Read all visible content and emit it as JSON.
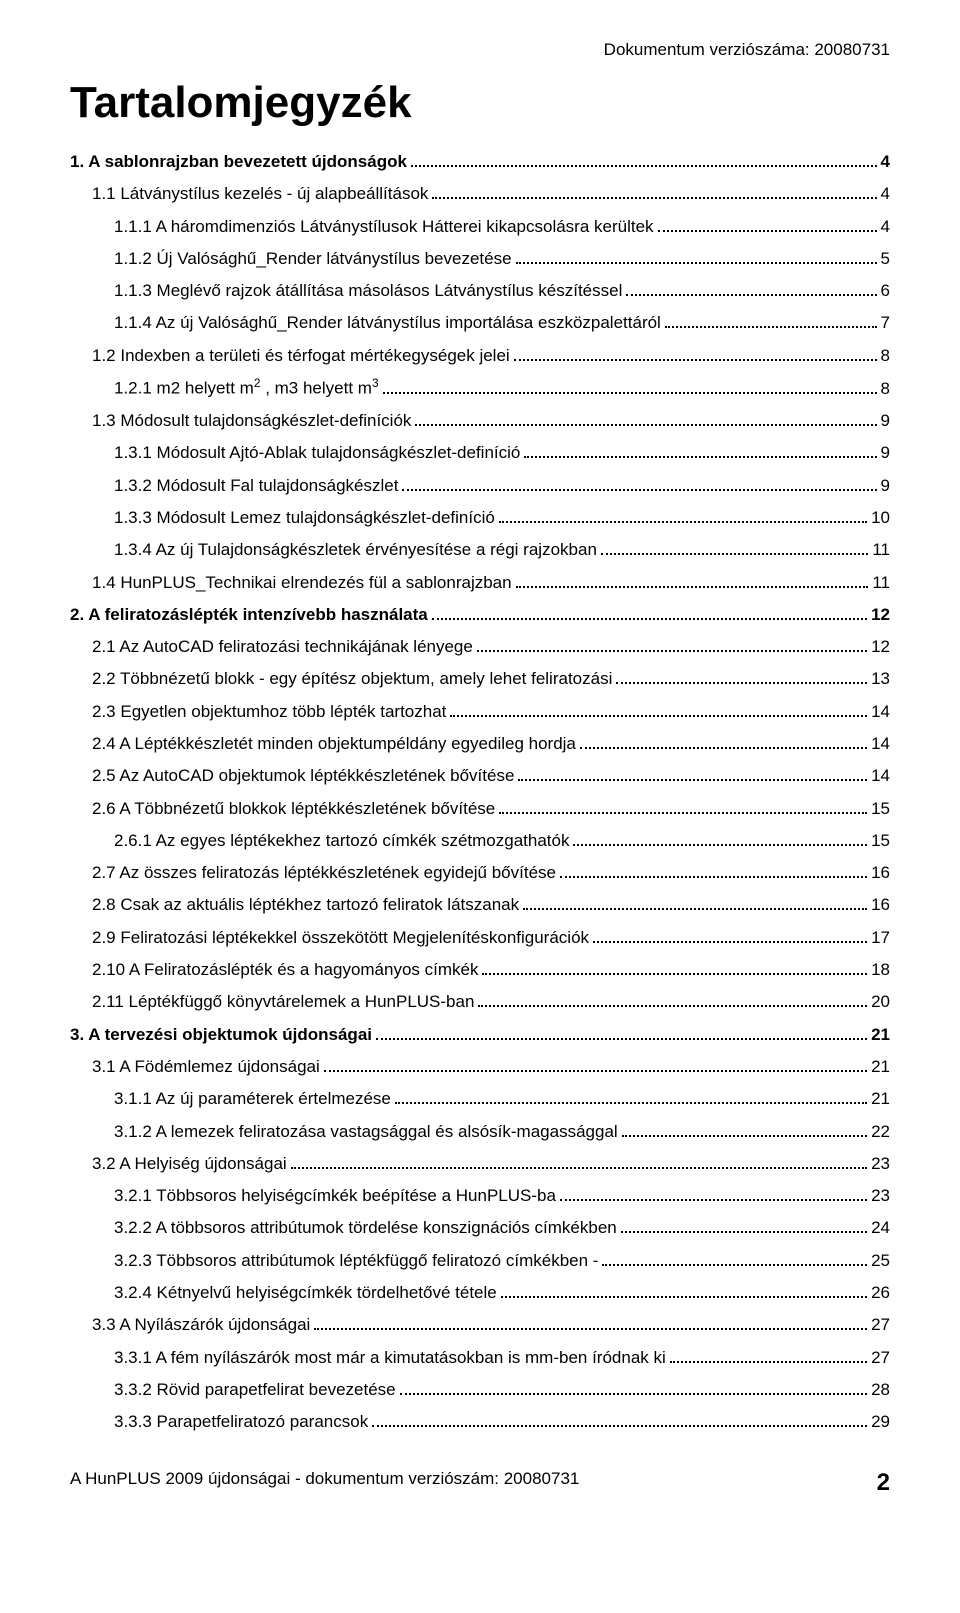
{
  "header": {
    "version_text": "Dokumentum verziószáma: 20080731"
  },
  "title": "Tartalomjegyzék",
  "toc": [
    {
      "level": 0,
      "text": "1. A sablonrajzban bevezetett újdonságok",
      "page": "4"
    },
    {
      "level": 1,
      "text": "1.1 Látványstílus kezelés - új alapbeállítások",
      "page": "4"
    },
    {
      "level": 2,
      "text": "1.1.1 A háromdimenziós Látványstílusok Hátterei kikapcsolásra kerültek",
      "page": "4"
    },
    {
      "level": 2,
      "text": "1.1.2 Új Valósághű_Render látványstílus bevezetése",
      "page": "5"
    },
    {
      "level": 2,
      "text": "1.1.3 Meglévő rajzok átállítása másolásos Látványstílus készítéssel",
      "page": "6"
    },
    {
      "level": 2,
      "text": "1.1.4 Az új Valósághű_Render látványstílus importálása eszközpalettáról",
      "page": "7"
    },
    {
      "level": 1,
      "text": "1.2 Indexben a területi és térfogat mértékegységek jelei",
      "page": "8"
    },
    {
      "level": 2,
      "text": "1.2.1 m2 helyett m<sup>2</sup> , m3 helyett m<sup>3</sup>",
      "page": "8",
      "html": true
    },
    {
      "level": 1,
      "text": "1.3 Módosult tulajdonságkészlet-definíciók",
      "page": "9"
    },
    {
      "level": 2,
      "text": "1.3.1 Módosult Ajtó-Ablak tulajdonságkészlet-definíció",
      "page": "9"
    },
    {
      "level": 2,
      "text": "1.3.2 Módosult Fal tulajdonságkészlet",
      "page": "9"
    },
    {
      "level": 2,
      "text": "1.3.3 Módosult Lemez tulajdonságkészlet-definíció",
      "page": "10"
    },
    {
      "level": 2,
      "text": "1.3.4 Az új Tulajdonságkészletek érvényesítése a régi rajzokban",
      "page": "11"
    },
    {
      "level": 1,
      "text": "1.4 HunPLUS_Technikai elrendezés fül a sablonrajzban",
      "page": "11"
    },
    {
      "level": 0,
      "text": "2. A feliratozáslépték intenzívebb használata",
      "page": "12"
    },
    {
      "level": 1,
      "text": "2.1 Az AutoCAD feliratozási technikájának lényege",
      "page": "12"
    },
    {
      "level": 1,
      "text": "2.2 Többnézetű blokk - egy építész objektum, amely lehet feliratozási",
      "page": "13"
    },
    {
      "level": 1,
      "text": "2.3 Egyetlen objektumhoz több lépték tartozhat",
      "page": "14"
    },
    {
      "level": 1,
      "text": "2.4 A Léptékkészletét minden objektumpéldány egyedileg hordja",
      "page": "14"
    },
    {
      "level": 1,
      "text": "2.5 Az AutoCAD objektumok léptékkészletének bővítése",
      "page": "14"
    },
    {
      "level": 1,
      "text": "2.6 A Többnézetű blokkok léptékkészletének bővítése",
      "page": "15"
    },
    {
      "level": 2,
      "text": "2.6.1 Az egyes léptékekhez tartozó címkék szétmozgathatók",
      "page": "15"
    },
    {
      "level": 1,
      "text": "2.7 Az összes feliratozás léptékkészletének egyidejű bővítése",
      "page": "16"
    },
    {
      "level": 1,
      "text": "2.8 Csak az aktuális léptékhez tartozó feliratok látszanak",
      "page": "16"
    },
    {
      "level": 1,
      "text": "2.9 Feliratozási léptékekkel összekötött Megjelenítéskonfigurációk",
      "page": "17"
    },
    {
      "level": 1,
      "text": "2.10 A Feliratozáslépték és a hagyományos címkék",
      "page": "18"
    },
    {
      "level": 1,
      "text": "2.11 Léptékfüggő könyvtárelemek a HunPLUS-ban",
      "page": "20"
    },
    {
      "level": 0,
      "text": "3. A tervezési objektumok újdonságai",
      "page": "21"
    },
    {
      "level": 1,
      "text": "3.1 A Födémlemez újdonságai",
      "page": "21"
    },
    {
      "level": 2,
      "text": "3.1.1 Az új paraméterek értelmezése",
      "page": "21"
    },
    {
      "level": 2,
      "text": "3.1.2 A lemezek feliratozása vastagsággal és alsósík-magassággal",
      "page": "22"
    },
    {
      "level": 1,
      "text": "3.2 A Helyiség újdonságai",
      "page": "23"
    },
    {
      "level": 2,
      "text": "3.2.1 Többsoros helyiségcímkék beépítése a HunPLUS-ba",
      "page": "23"
    },
    {
      "level": 2,
      "text": "3.2.2 A többsoros attribútumok tördelése konszignációs címkékben",
      "page": "24"
    },
    {
      "level": 2,
      "text": "3.2.3 Többsoros attribútumok léptékfüggő feliratozó címkékben -",
      "page": "25"
    },
    {
      "level": 2,
      "text": "3.2.4 Kétnyelvű helyiségcímkék tördelhetővé tétele",
      "page": "26"
    },
    {
      "level": 1,
      "text": "3.3 A Nyílászárók újdonságai",
      "page": "27"
    },
    {
      "level": 2,
      "text": "3.3.1 A fém nyílászárók most már a kimutatásokban is mm-ben íródnak ki",
      "page": "27"
    },
    {
      "level": 2,
      "text": "3.3.2 Rövid parapetfelirat bevezetése",
      "page": "28"
    },
    {
      "level": 2,
      "text": "3.3.3 Parapetfeliratozó parancsok",
      "page": "29"
    }
  ],
  "footer": {
    "left": "A HunPLUS 2009 újdonságai - dokumentum verziószám: 20080731",
    "page_number": "2"
  }
}
